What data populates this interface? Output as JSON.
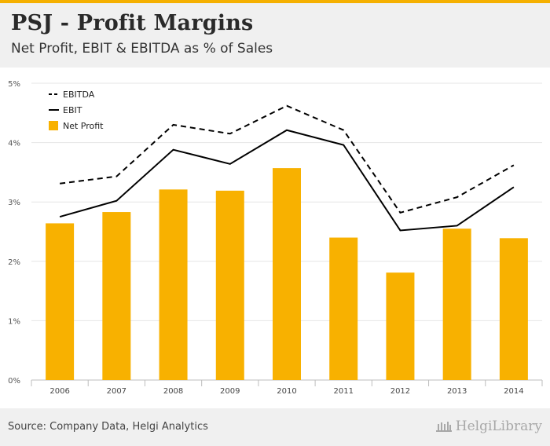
{
  "header": {
    "title": "PSJ - Profit Margins",
    "subtitle": "Net Profit, EBIT & EBITDA as % of Sales"
  },
  "footer": {
    "source": "Source: Company Data, Helgi Analytics",
    "brand": "HelgiLibrary"
  },
  "colors": {
    "accent": "#f5b000",
    "bar": "#f8b100",
    "line": "#000000",
    "header_bg": "#f0f0f0"
  },
  "chart_data": {
    "type": "bar",
    "categories": [
      "2006",
      "2007",
      "2008",
      "2009",
      "2010",
      "2011",
      "2012",
      "2013",
      "2014"
    ],
    "ylim": [
      0,
      5
    ],
    "yticks": [
      "0%",
      "1%",
      "2%",
      "3%",
      "4%",
      "5%"
    ],
    "grid": true,
    "legend_position": "top-left",
    "series": [
      {
        "name": "EBITDA",
        "kind": "line",
        "style": "dashed",
        "values": [
          3.31,
          3.43,
          4.3,
          4.15,
          4.62,
          4.21,
          2.82,
          3.08,
          3.62
        ]
      },
      {
        "name": "EBIT",
        "kind": "line",
        "style": "solid",
        "values": [
          2.75,
          3.02,
          3.88,
          3.64,
          4.21,
          3.96,
          2.52,
          2.6,
          3.25
        ]
      },
      {
        "name": "Net Profit",
        "kind": "bar",
        "values": [
          2.64,
          2.83,
          3.21,
          3.19,
          3.57,
          2.4,
          1.81,
          2.55,
          2.39
        ]
      }
    ]
  }
}
